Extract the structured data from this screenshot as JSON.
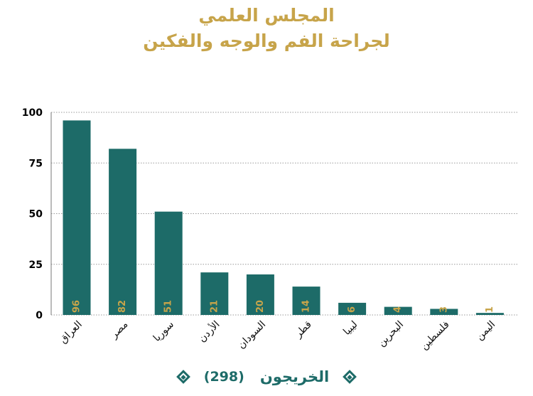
{
  "title": {
    "line1": "المجلس العلمي",
    "line2": "لجراحة الفم والوجه والفكين"
  },
  "footer": {
    "label": "الخريجون",
    "count": "(298)"
  },
  "colors": {
    "bar": "#1d6b68",
    "value_label": "#c7a44a",
    "title": "#c7a44a",
    "grid": "#9a9a9a"
  },
  "chart_data": {
    "type": "bar",
    "title": "المجلس العلمي لجراحة الفم والوجه والفكين",
    "categories": [
      "العراق",
      "مصر",
      "سوريا",
      "الأردن",
      "السودان",
      "قطر",
      "ليبيا",
      "البحرين",
      "فلسطين",
      "اليمن"
    ],
    "values": [
      96,
      82,
      51,
      21,
      20,
      14,
      6,
      4,
      3,
      1
    ],
    "ylim": [
      0,
      100
    ],
    "yticks": [
      0,
      25,
      50,
      75,
      100
    ],
    "grid": true,
    "data_labels": true
  }
}
